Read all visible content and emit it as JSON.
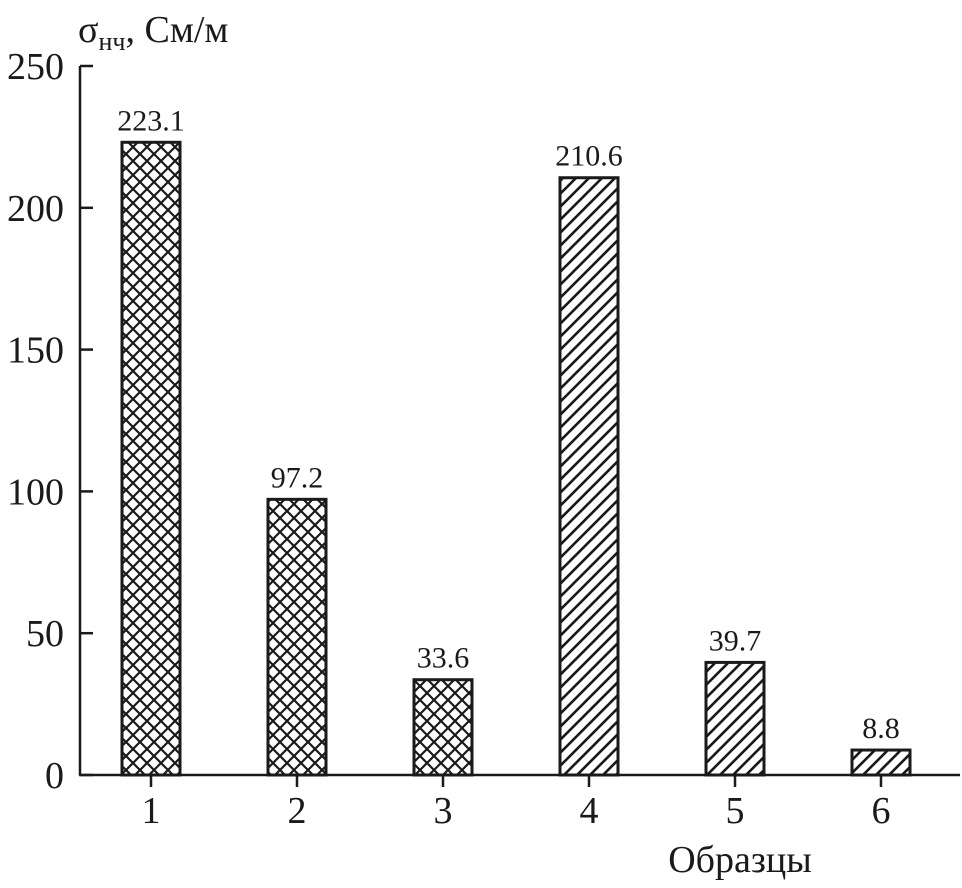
{
  "chart_data": {
    "type": "bar",
    "ylabel_symbol": "σ",
    "ylabel_subscript": "нч",
    "ylabel_unit": ", См/м",
    "xlabel": "Образцы",
    "ylim": [
      0,
      250
    ],
    "yticks": [
      0,
      50,
      100,
      150,
      200,
      250
    ],
    "categories": [
      "1",
      "2",
      "3",
      "4",
      "5",
      "6"
    ],
    "values": [
      223.1,
      97.2,
      33.6,
      210.6,
      39.7,
      8.8
    ],
    "value_labels": [
      "223.1",
      "97.2",
      "33.6",
      "210.6",
      "39.7",
      "8.8"
    ],
    "patterns": [
      "crosshatch",
      "crosshatch",
      "crosshatch",
      "diagonal",
      "diagonal",
      "diagonal"
    ],
    "grid": false,
    "colors": {
      "ink": "#1a1a1a",
      "background": "#ffffff"
    }
  }
}
